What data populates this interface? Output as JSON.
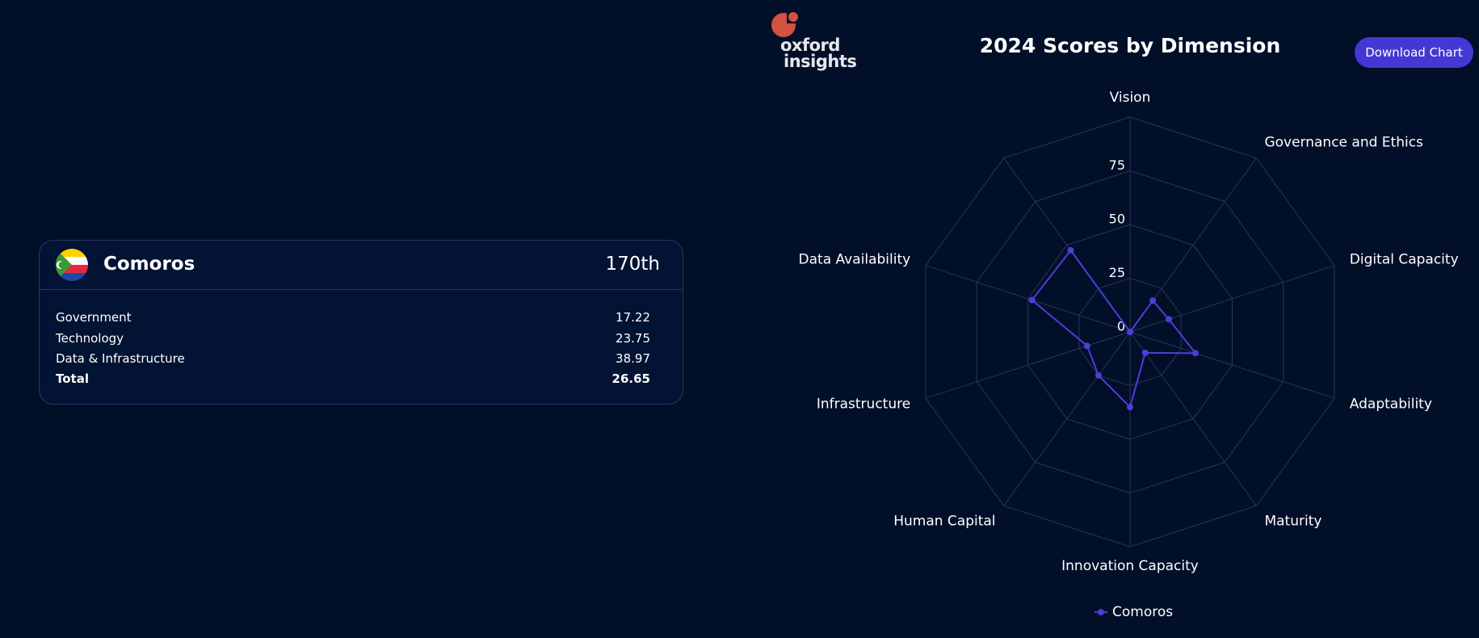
{
  "logo": {
    "line1": "oxford",
    "line2": "insights"
  },
  "download_button": "Download Chart",
  "card": {
    "country": "Comoros",
    "rank": "170th",
    "rows": [
      {
        "label": "Government",
        "value": 17.22
      },
      {
        "label": "Technology",
        "value": 23.75
      },
      {
        "label": "Data & Infrastructure",
        "value": 38.97
      },
      {
        "label": "Total",
        "value": 26.65
      }
    ]
  },
  "chart_data": {
    "type": "radar",
    "title": "2024 Scores by Dimension",
    "categories": [
      "Vision",
      "Governance and Ethics",
      "Digital Capacity",
      "Adaptability",
      "Maturity",
      "Innovation Capacity",
      "Human Capital",
      "Infrastructure",
      "Data Availability",
      null
    ],
    "series": [
      {
        "name": "Comoros",
        "color": "#4b3fd6",
        "values": [
          0,
          18,
          19,
          32,
          12,
          35,
          25,
          21,
          48,
          47
        ]
      }
    ],
    "ylim": [
      0,
      100
    ],
    "yticks": [
      0,
      25,
      50,
      75
    ],
    "grid": true
  }
}
